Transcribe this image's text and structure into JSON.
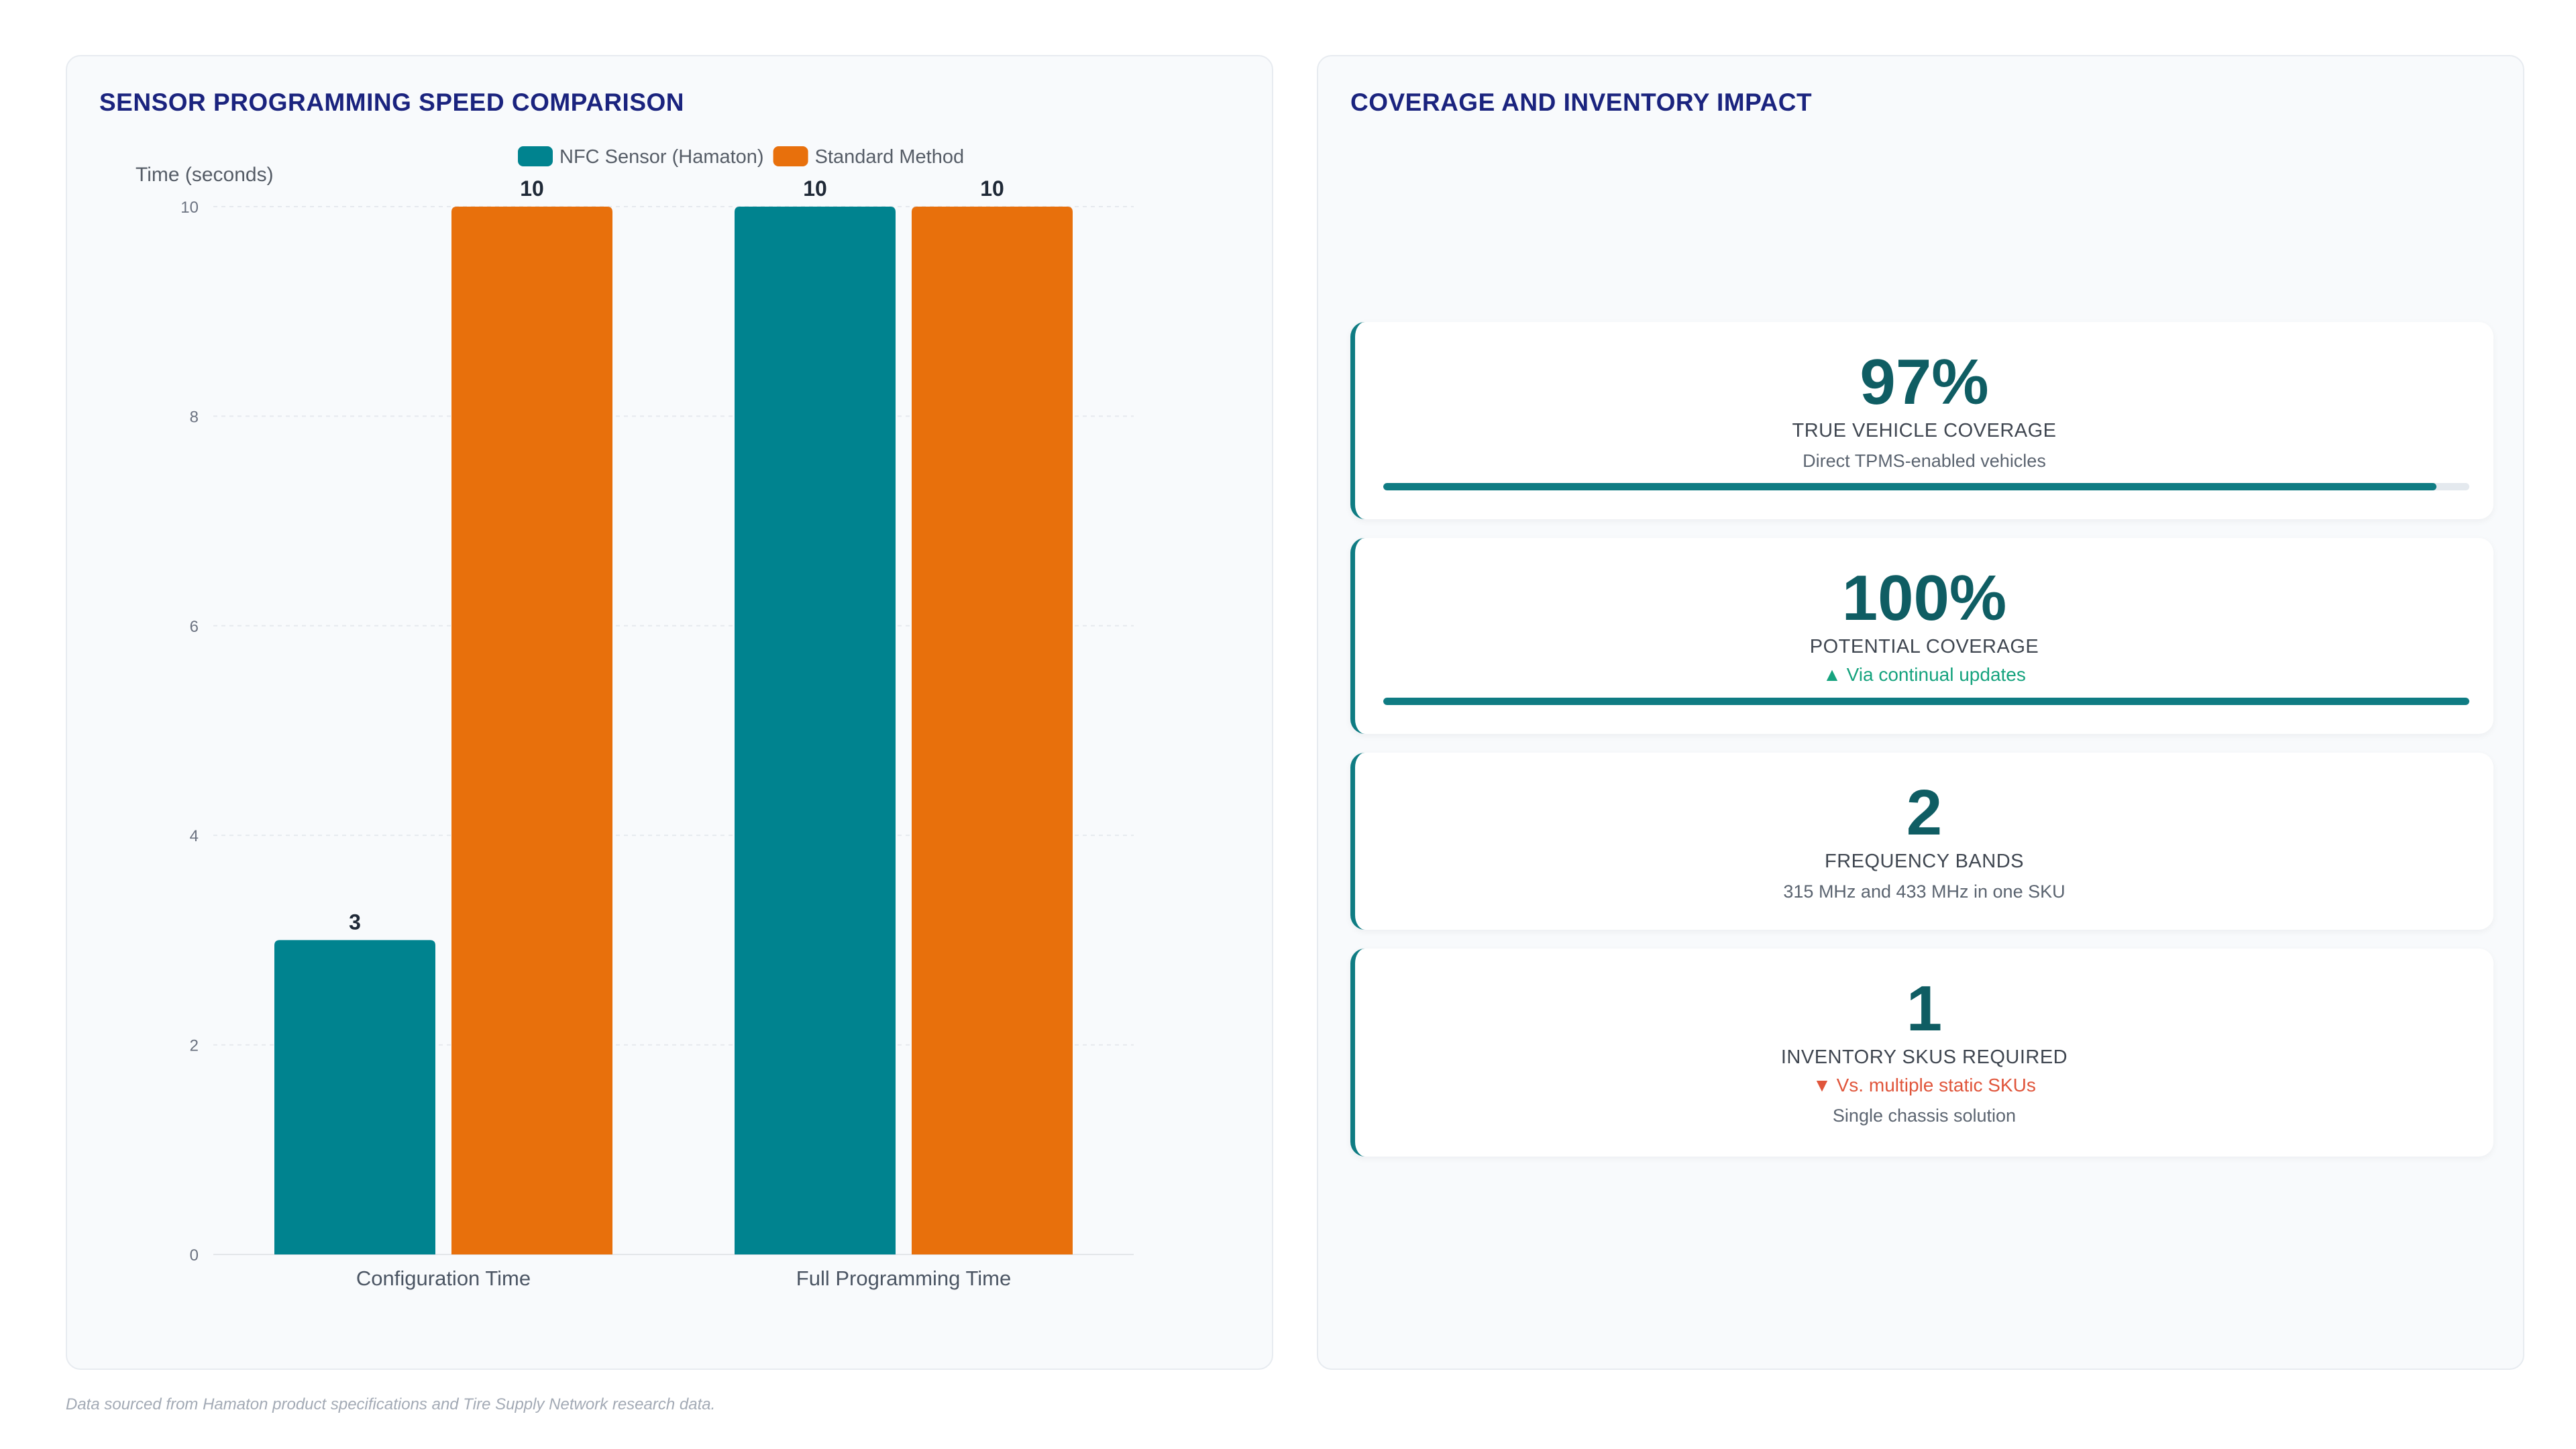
{
  "left_panel": {
    "title": "SENSOR PROGRAMMING SPEED COMPARISON"
  },
  "right_panel": {
    "title": "COVERAGE AND INVENTORY IMPACT"
  },
  "chart_data": {
    "type": "bar",
    "title": "SENSOR PROGRAMMING SPEED COMPARISON",
    "ylabel": "Time (seconds)",
    "xlabel": "",
    "categories": [
      "Configuration Time",
      "Full Programming Time"
    ],
    "series": [
      {
        "name": "NFC Sensor (Hamaton)",
        "values": [
          3,
          10
        ],
        "color": "#00838f"
      },
      {
        "name": "Standard Method",
        "values": [
          10,
          10
        ],
        "color": "#e8700c"
      }
    ],
    "ylim": [
      0,
      10
    ],
    "yticks": [
      0,
      2,
      4,
      6,
      8,
      10
    ],
    "grid": true,
    "legend_position": "top-center",
    "data_labels": true
  },
  "stats": [
    {
      "value": "97%",
      "label": "TRUE VEHICLE COVERAGE",
      "note": "Direct TPMS-enabled vehicles",
      "progress": 0.97
    },
    {
      "value": "100%",
      "label": "POTENTIAL COVERAGE",
      "trend": "▲ Via continual updates",
      "trend_dir": "up",
      "progress": 1.0
    },
    {
      "value": "2",
      "label": "FREQUENCY BANDS",
      "note": "315 MHz and 433 MHz in one SKU"
    },
    {
      "value": "1",
      "label": "INVENTORY SKUS REQUIRED",
      "trend": "▼ Vs. multiple static SKUs",
      "trend_dir": "down",
      "note": "Single chassis solution"
    }
  ],
  "footer": "Data sourced from Hamaton product specifications and Tire Supply Network research data.",
  "colors": {
    "accent": "#0f7c83",
    "title": "#1a237e",
    "nfc": "#00838f",
    "standard": "#e8700c"
  }
}
